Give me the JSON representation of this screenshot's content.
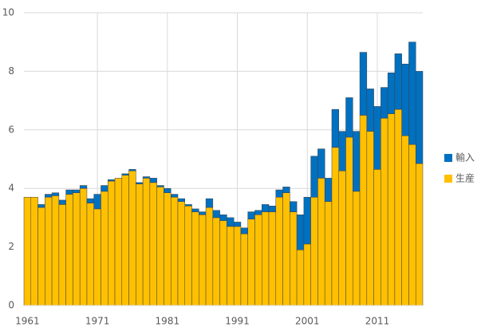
{
  "chart_data": {
    "type": "stacked_bar",
    "categories": [
      "1961",
      null,
      null,
      null,
      null,
      null,
      null,
      null,
      null,
      null,
      "1971",
      null,
      null,
      null,
      null,
      null,
      null,
      null,
      null,
      null,
      "1981",
      null,
      null,
      null,
      null,
      null,
      null,
      null,
      null,
      null,
      "1991",
      null,
      null,
      null,
      null,
      null,
      null,
      null,
      null,
      null,
      "2001",
      null,
      null,
      null,
      null,
      null,
      null,
      null,
      null,
      null,
      "2011",
      null,
      null,
      null,
      null,
      null,
      null
    ],
    "series": [
      {
        "name": "生産",
        "color": "#ffc000",
        "values": [
          3.7,
          3.7,
          3.35,
          3.7,
          3.75,
          3.45,
          3.8,
          3.85,
          4.0,
          3.5,
          3.3,
          3.9,
          4.25,
          4.35,
          4.45,
          4.6,
          4.15,
          4.35,
          4.2,
          4.05,
          3.85,
          3.7,
          3.55,
          3.4,
          3.2,
          3.1,
          3.35,
          3.0,
          2.9,
          2.7,
          2.7,
          2.45,
          2.95,
          3.1,
          3.2,
          3.2,
          3.7,
          3.85,
          3.2,
          1.9,
          2.1,
          3.7,
          4.35,
          3.55,
          5.4,
          4.6,
          5.75,
          3.9,
          6.5,
          5.95,
          4.65,
          6.4,
          6.55,
          6.7,
          5.8,
          5.5,
          4.85
        ]
      },
      {
        "name": "輸入",
        "color": "#0070c0",
        "values": [
          0,
          0,
          0.1,
          0.1,
          0.1,
          0.15,
          0.15,
          0.1,
          0.1,
          0.15,
          0.5,
          0.2,
          0.05,
          0,
          0.05,
          0.05,
          0.05,
          0.05,
          0.15,
          0.05,
          0.15,
          0.1,
          0.1,
          0.05,
          0.1,
          0.1,
          0.3,
          0.25,
          0.2,
          0.3,
          0.15,
          0.2,
          0.25,
          0.15,
          0.25,
          0.2,
          0.25,
          0.2,
          0.35,
          1.2,
          1.6,
          1.4,
          1.0,
          0.8,
          1.3,
          1.35,
          1.35,
          2.05,
          2.15,
          1.45,
          2.15,
          1.05,
          1.4,
          1.9,
          2.45,
          3.5,
          3.15
        ]
      }
    ],
    "ylim": [
      0,
      10
    ],
    "yticks": [
      0,
      2,
      4,
      6,
      8,
      10
    ],
    "grid": true,
    "legend": "right"
  }
}
